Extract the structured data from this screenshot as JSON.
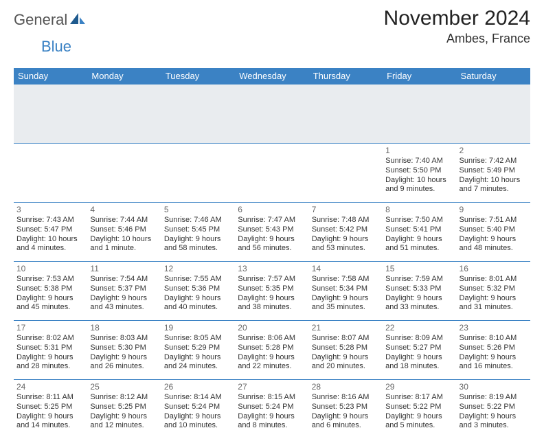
{
  "brand": {
    "text1": "General",
    "text2": "Blue"
  },
  "title": "November 2024",
  "location": "Ambes, France",
  "colors": {
    "header_bg": "#3b82c4",
    "header_text": "#ffffff",
    "spacer_bg": "#e9ecef",
    "cell_border": "#3b82c4",
    "daynum": "#666666",
    "body_text": "#333333"
  },
  "daynames": [
    "Sunday",
    "Monday",
    "Tuesday",
    "Wednesday",
    "Thursday",
    "Friday",
    "Saturday"
  ],
  "weeks": [
    [
      null,
      null,
      null,
      null,
      null,
      {
        "n": "1",
        "sr": "Sunrise: 7:40 AM",
        "ss": "Sunset: 5:50 PM",
        "dl": "Daylight: 10 hours and 9 minutes."
      },
      {
        "n": "2",
        "sr": "Sunrise: 7:42 AM",
        "ss": "Sunset: 5:49 PM",
        "dl": "Daylight: 10 hours and 7 minutes."
      }
    ],
    [
      {
        "n": "3",
        "sr": "Sunrise: 7:43 AM",
        "ss": "Sunset: 5:47 PM",
        "dl": "Daylight: 10 hours and 4 minutes."
      },
      {
        "n": "4",
        "sr": "Sunrise: 7:44 AM",
        "ss": "Sunset: 5:46 PM",
        "dl": "Daylight: 10 hours and 1 minute."
      },
      {
        "n": "5",
        "sr": "Sunrise: 7:46 AM",
        "ss": "Sunset: 5:45 PM",
        "dl": "Daylight: 9 hours and 58 minutes."
      },
      {
        "n": "6",
        "sr": "Sunrise: 7:47 AM",
        "ss": "Sunset: 5:43 PM",
        "dl": "Daylight: 9 hours and 56 minutes."
      },
      {
        "n": "7",
        "sr": "Sunrise: 7:48 AM",
        "ss": "Sunset: 5:42 PM",
        "dl": "Daylight: 9 hours and 53 minutes."
      },
      {
        "n": "8",
        "sr": "Sunrise: 7:50 AM",
        "ss": "Sunset: 5:41 PM",
        "dl": "Daylight: 9 hours and 51 minutes."
      },
      {
        "n": "9",
        "sr": "Sunrise: 7:51 AM",
        "ss": "Sunset: 5:40 PM",
        "dl": "Daylight: 9 hours and 48 minutes."
      }
    ],
    [
      {
        "n": "10",
        "sr": "Sunrise: 7:53 AM",
        "ss": "Sunset: 5:38 PM",
        "dl": "Daylight: 9 hours and 45 minutes."
      },
      {
        "n": "11",
        "sr": "Sunrise: 7:54 AM",
        "ss": "Sunset: 5:37 PM",
        "dl": "Daylight: 9 hours and 43 minutes."
      },
      {
        "n": "12",
        "sr": "Sunrise: 7:55 AM",
        "ss": "Sunset: 5:36 PM",
        "dl": "Daylight: 9 hours and 40 minutes."
      },
      {
        "n": "13",
        "sr": "Sunrise: 7:57 AM",
        "ss": "Sunset: 5:35 PM",
        "dl": "Daylight: 9 hours and 38 minutes."
      },
      {
        "n": "14",
        "sr": "Sunrise: 7:58 AM",
        "ss": "Sunset: 5:34 PM",
        "dl": "Daylight: 9 hours and 35 minutes."
      },
      {
        "n": "15",
        "sr": "Sunrise: 7:59 AM",
        "ss": "Sunset: 5:33 PM",
        "dl": "Daylight: 9 hours and 33 minutes."
      },
      {
        "n": "16",
        "sr": "Sunrise: 8:01 AM",
        "ss": "Sunset: 5:32 PM",
        "dl": "Daylight: 9 hours and 31 minutes."
      }
    ],
    [
      {
        "n": "17",
        "sr": "Sunrise: 8:02 AM",
        "ss": "Sunset: 5:31 PM",
        "dl": "Daylight: 9 hours and 28 minutes."
      },
      {
        "n": "18",
        "sr": "Sunrise: 8:03 AM",
        "ss": "Sunset: 5:30 PM",
        "dl": "Daylight: 9 hours and 26 minutes."
      },
      {
        "n": "19",
        "sr": "Sunrise: 8:05 AM",
        "ss": "Sunset: 5:29 PM",
        "dl": "Daylight: 9 hours and 24 minutes."
      },
      {
        "n": "20",
        "sr": "Sunrise: 8:06 AM",
        "ss": "Sunset: 5:28 PM",
        "dl": "Daylight: 9 hours and 22 minutes."
      },
      {
        "n": "21",
        "sr": "Sunrise: 8:07 AM",
        "ss": "Sunset: 5:28 PM",
        "dl": "Daylight: 9 hours and 20 minutes."
      },
      {
        "n": "22",
        "sr": "Sunrise: 8:09 AM",
        "ss": "Sunset: 5:27 PM",
        "dl": "Daylight: 9 hours and 18 minutes."
      },
      {
        "n": "23",
        "sr": "Sunrise: 8:10 AM",
        "ss": "Sunset: 5:26 PM",
        "dl": "Daylight: 9 hours and 16 minutes."
      }
    ],
    [
      {
        "n": "24",
        "sr": "Sunrise: 8:11 AM",
        "ss": "Sunset: 5:25 PM",
        "dl": "Daylight: 9 hours and 14 minutes."
      },
      {
        "n": "25",
        "sr": "Sunrise: 8:12 AM",
        "ss": "Sunset: 5:25 PM",
        "dl": "Daylight: 9 hours and 12 minutes."
      },
      {
        "n": "26",
        "sr": "Sunrise: 8:14 AM",
        "ss": "Sunset: 5:24 PM",
        "dl": "Daylight: 9 hours and 10 minutes."
      },
      {
        "n": "27",
        "sr": "Sunrise: 8:15 AM",
        "ss": "Sunset: 5:24 PM",
        "dl": "Daylight: 9 hours and 8 minutes."
      },
      {
        "n": "28",
        "sr": "Sunrise: 8:16 AM",
        "ss": "Sunset: 5:23 PM",
        "dl": "Daylight: 9 hours and 6 minutes."
      },
      {
        "n": "29",
        "sr": "Sunrise: 8:17 AM",
        "ss": "Sunset: 5:22 PM",
        "dl": "Daylight: 9 hours and 5 minutes."
      },
      {
        "n": "30",
        "sr": "Sunrise: 8:19 AM",
        "ss": "Sunset: 5:22 PM",
        "dl": "Daylight: 9 hours and 3 minutes."
      }
    ]
  ]
}
